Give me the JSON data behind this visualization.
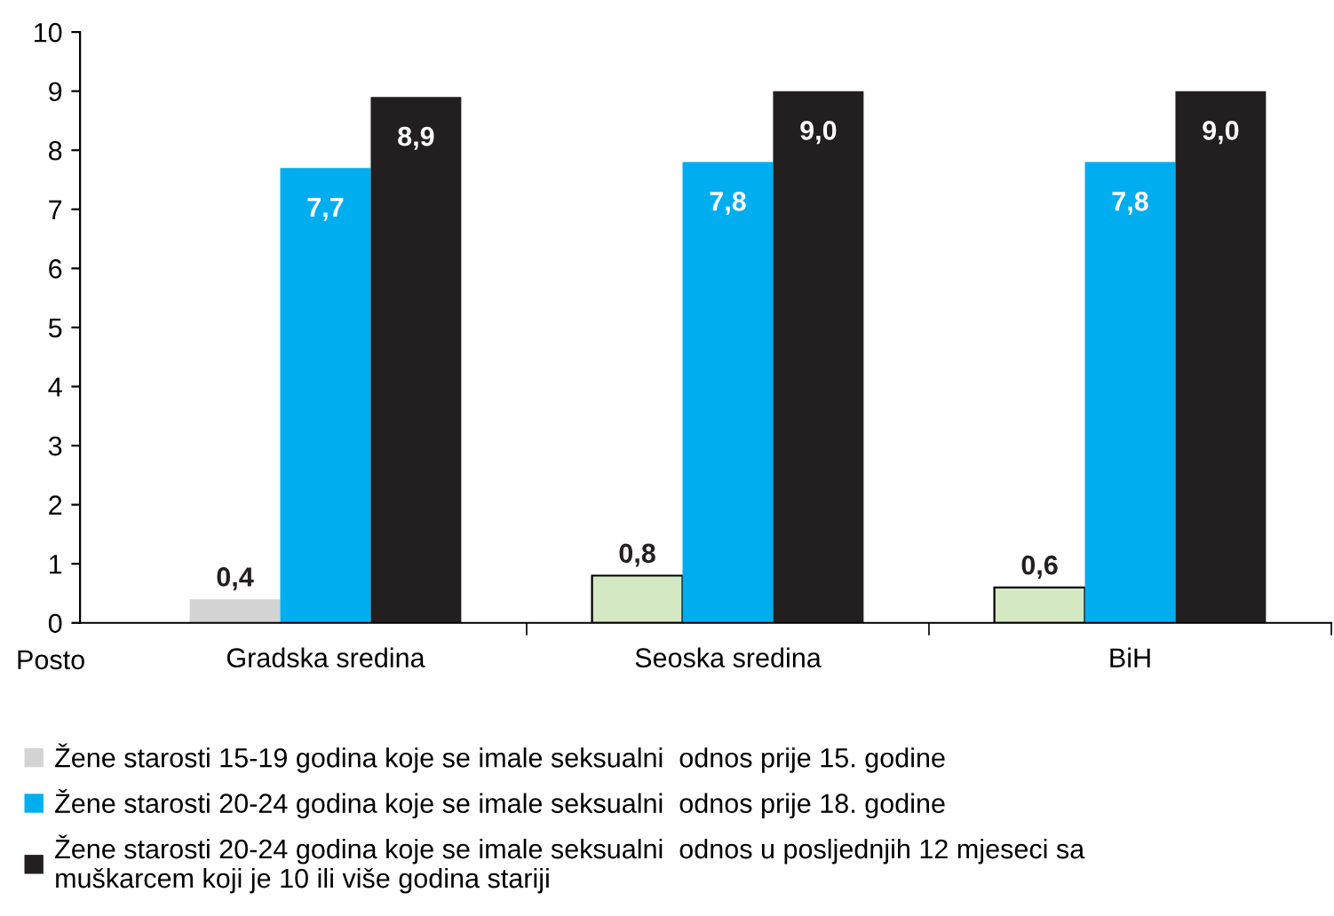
{
  "chart_data": {
    "type": "bar",
    "ylabel": "Posto",
    "categories": [
      "Gradska sredina",
      "Seoska sredina",
      "BiH"
    ],
    "series": [
      {
        "name": "Žene starosti 15-19 godina koje se imale seksualni  odnos prije 15. godine",
        "color": "#d3d3d3",
        "colors": [
          "#d3d3d3",
          "#d4e8c4",
          "#d4e8c4"
        ],
        "values": [
          0.4,
          0.8,
          0.6
        ],
        "value_labels": [
          "0,4",
          "0,8",
          "0,6"
        ]
      },
      {
        "name": "Žene starosti 20-24 godina koje se imale seksualni  odnos prije 18. godine",
        "color": "#00aeef",
        "values": [
          7.7,
          7.8,
          7.8
        ],
        "value_labels": [
          "7,7",
          "7,8",
          "7,8"
        ]
      },
      {
        "name": "Žene starosti 20-24 godina koje se imale seksualni  odnos u posljednjih 12 mjeseci sa\nmuškarcem koji je 10 ili više godina stariji",
        "color": "#231f20",
        "values": [
          8.9,
          9.0,
          9.0
        ],
        "value_labels": [
          "8,9",
          "9,0",
          "9,0"
        ]
      }
    ],
    "ylim": [
      0,
      10
    ],
    "yticks": [
      0,
      1,
      2,
      3,
      4,
      5,
      6,
      7,
      8,
      9,
      10
    ],
    "grid": false,
    "legend": "bottom"
  }
}
